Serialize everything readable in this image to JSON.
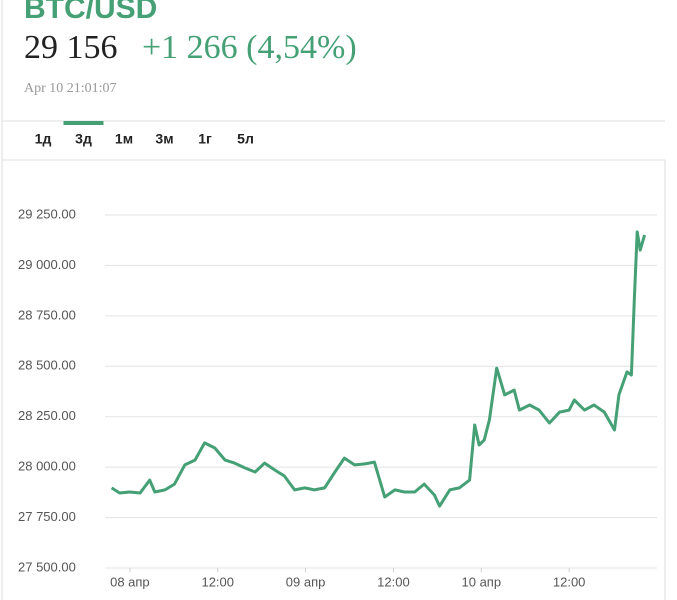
{
  "header": {
    "title": "BTC/USD",
    "price": "29 156",
    "change": "+1 266 (4,54%)",
    "timestamp": "Apr 10 21:01:07"
  },
  "tabs": {
    "items": [
      "1д",
      "3д",
      "1м",
      "3м",
      "1г",
      "5л"
    ],
    "active": 1
  },
  "chart_data": {
    "type": "line",
    "color": "#45a075",
    "grid": true,
    "x": [
      -2.5,
      -1.4,
      0,
      1.4,
      2.7,
      3.4,
      4.8,
      6.1,
      7.5,
      8.9,
      10.2,
      11.6,
      13.0,
      14.3,
      15.7,
      17.1,
      18.4,
      19.8,
      21.1,
      22.5,
      23.9,
      25.2,
      26.6,
      28.0,
      29.3,
      30.7,
      32.1,
      33.4,
      34.8,
      36.2,
      37.5,
      38.9,
      40.2,
      41.6,
      42.3,
      43.7,
      45.0,
      46.4,
      47.1,
      47.7,
      48.4,
      49.1,
      50.1,
      51.2,
      52.5,
      53.2,
      54.6,
      55.9,
      57.3,
      58.7,
      60.0,
      60.7,
      62.1,
      63.4,
      64.8,
      66.2,
      66.8,
      67.9,
      68.5,
      68.9,
      69.3,
      69.7,
      70.3
    ],
    "values": [
      27897,
      27872,
      27877,
      27872,
      27936,
      27877,
      27887,
      27916,
      28011,
      28035,
      28120,
      28095,
      28035,
      28020,
      27996,
      27976,
      28020,
      27986,
      27956,
      27887,
      27897,
      27887,
      27897,
      27976,
      28045,
      28011,
      28016,
      28025,
      27852,
      27887,
      27877,
      27877,
      27916,
      27862,
      27807,
      27887,
      27897,
      27936,
      28209,
      28110,
      28134,
      28234,
      28491,
      28358,
      28382,
      28283,
      28308,
      28283,
      28219,
      28273,
      28283,
      28333,
      28283,
      28308,
      28273,
      28184,
      28358,
      28472,
      28457,
      28828,
      29166,
      29076,
      29151
    ],
    "xlim": [
      -3.4,
      72
    ],
    "xticks": [
      {
        "value": 0,
        "label": "08 апр"
      },
      {
        "value": 12,
        "label": "12:00"
      },
      {
        "value": 24,
        "label": "09 апр"
      },
      {
        "value": 36,
        "label": "12:00"
      },
      {
        "value": 48,
        "label": "10 апр"
      },
      {
        "value": 60,
        "label": "12:00"
      }
    ],
    "ylim": [
      27500,
      29300
    ],
    "yticks": [
      {
        "value": 27500,
        "label": "27 500.00"
      },
      {
        "value": 27750,
        "label": "27 750.00"
      },
      {
        "value": 28000,
        "label": "28 000.00"
      },
      {
        "value": 28250,
        "label": "28 250.00"
      },
      {
        "value": 28500,
        "label": "28 500.00"
      },
      {
        "value": 28750,
        "label": "28 750.00"
      },
      {
        "value": 29000,
        "label": "29 000.00"
      },
      {
        "value": 29250,
        "label": "29 250.00"
      }
    ]
  }
}
